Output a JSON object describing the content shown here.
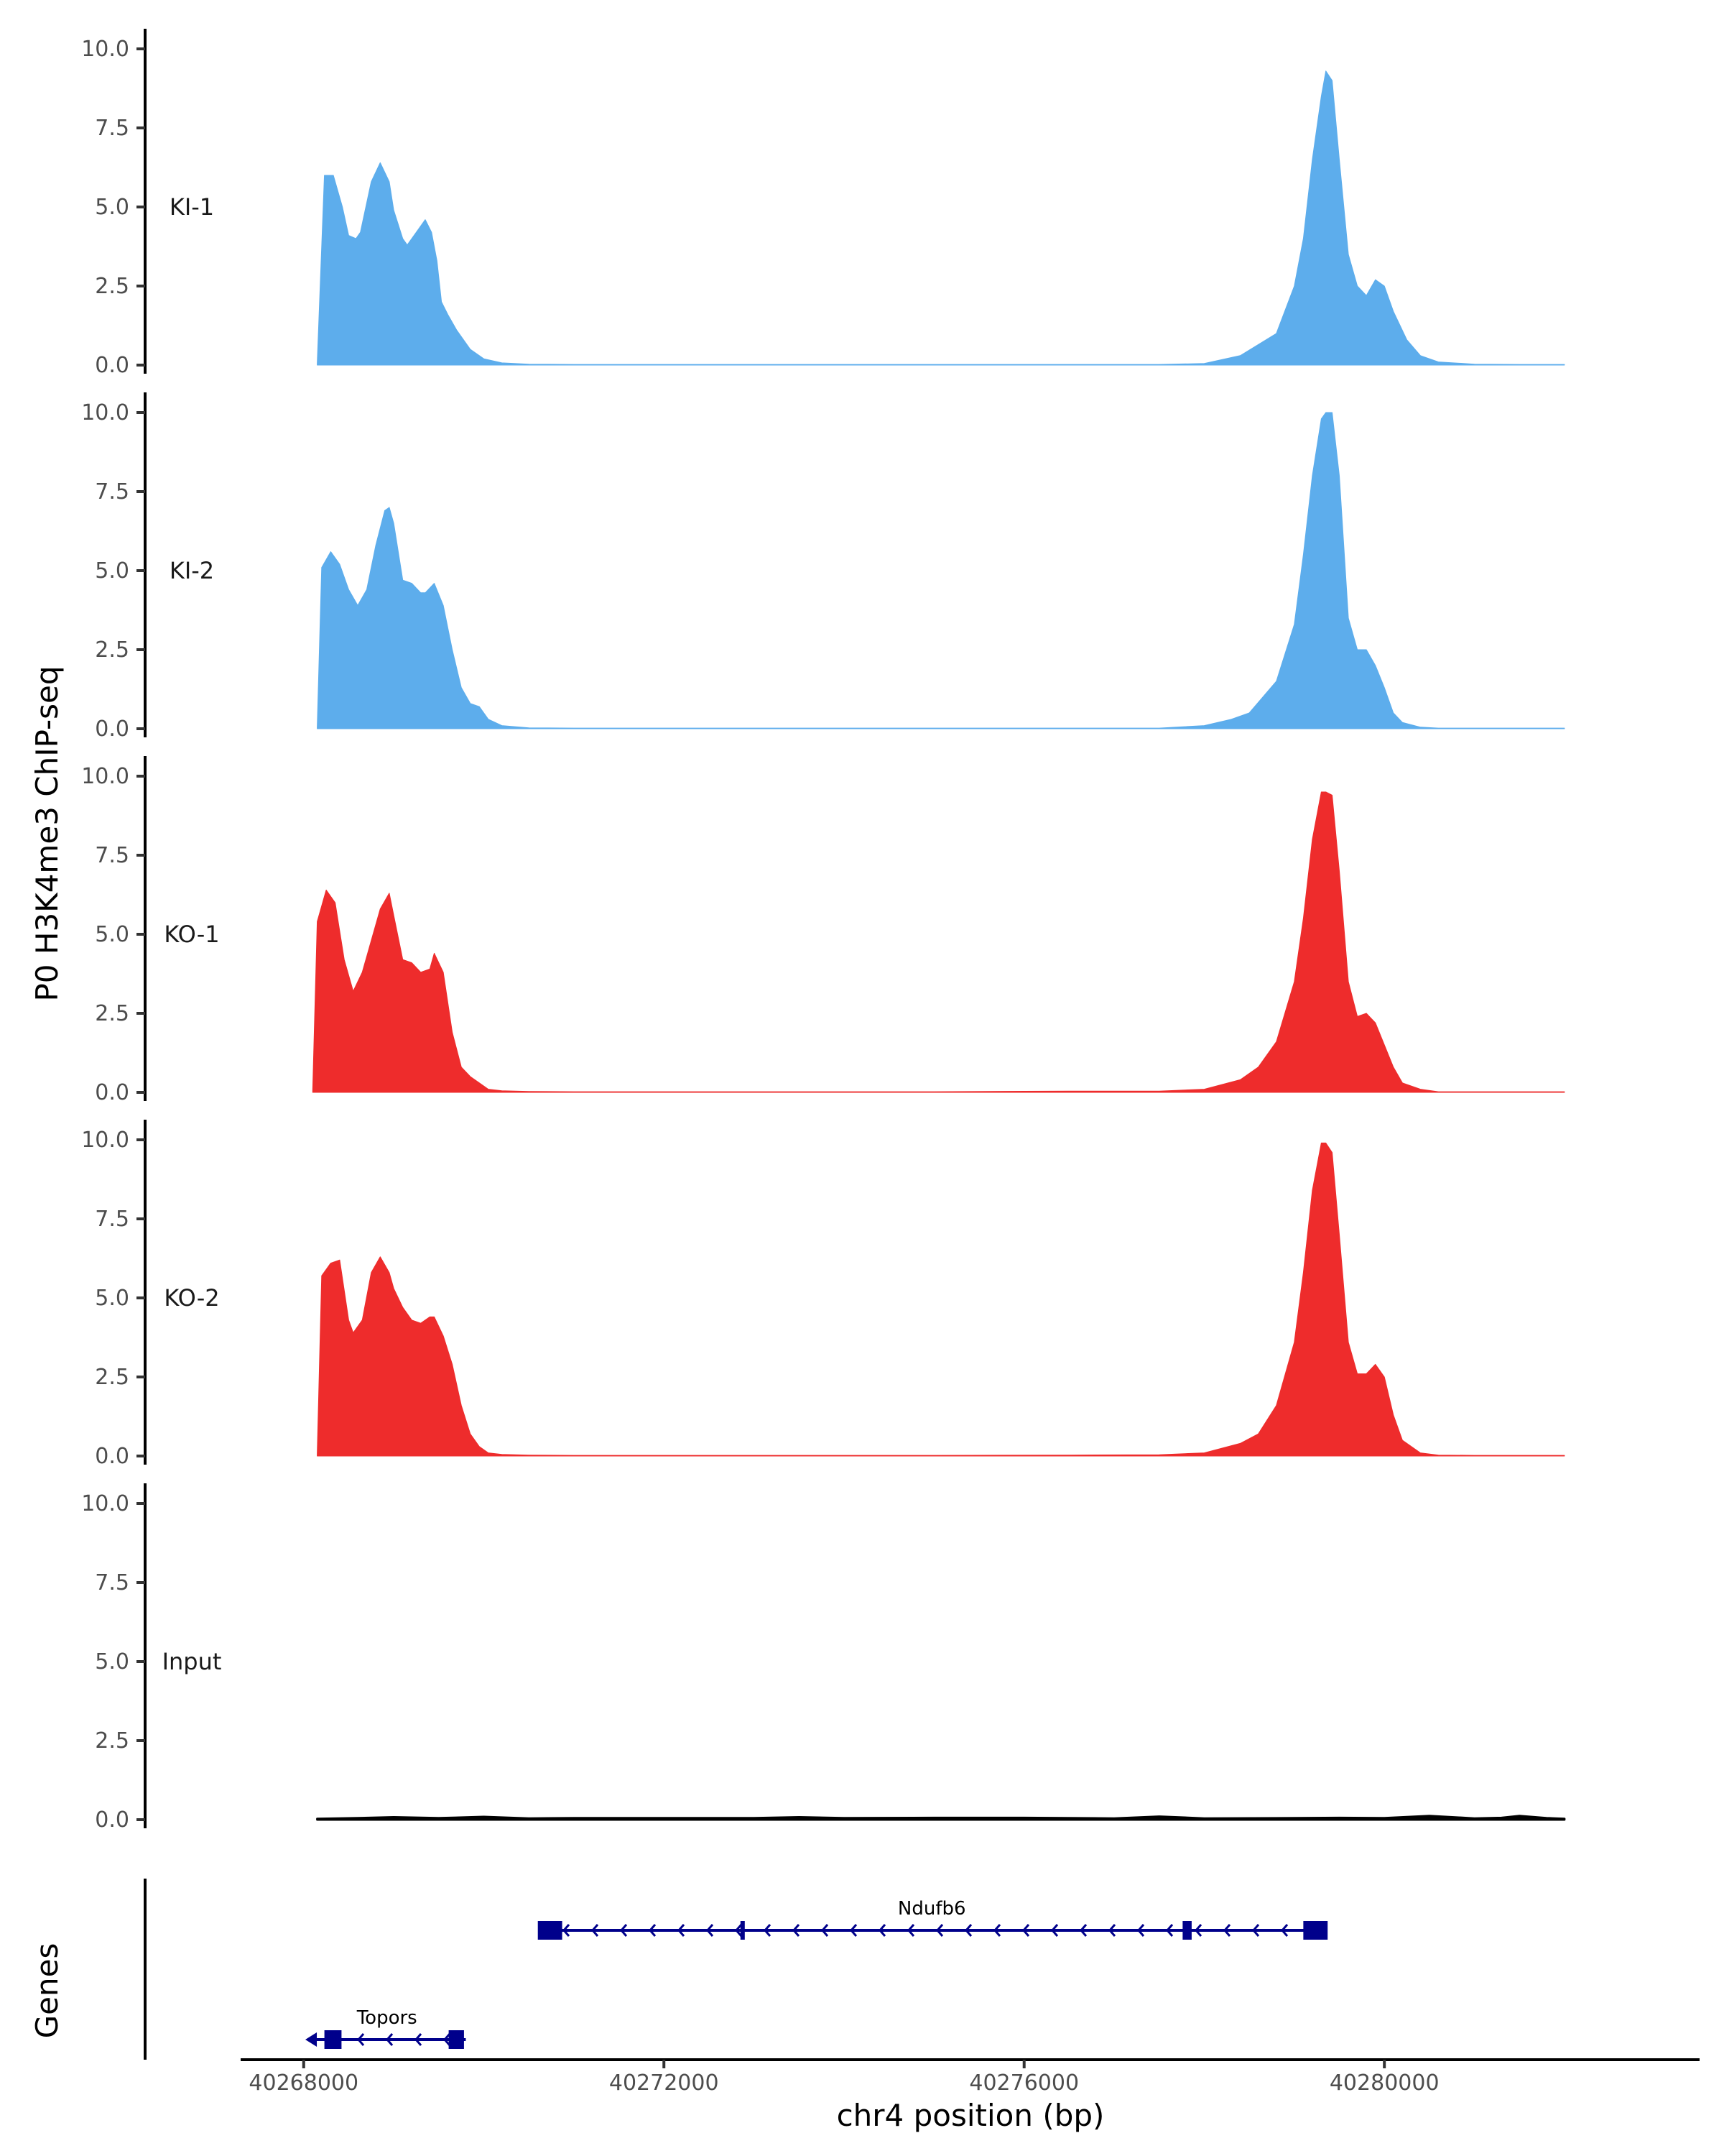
{
  "chart_data": {
    "type": "area",
    "ylabel": "P0 H3K4me3 ChIP-seq",
    "xlabel": "chr4 position (bp)",
    "genes_label": "Genes",
    "ylim": [
      0,
      10.4
    ],
    "xlim": [
      40267300,
      40283500
    ],
    "y_ticks": [
      "0.0",
      "2.5",
      "5.0",
      "7.5",
      "10.0"
    ],
    "y_tick_values": [
      0,
      2.5,
      5.0,
      7.5,
      10.0
    ],
    "x_ticks": [
      "40268000",
      "40272000",
      "40276000",
      "40280000"
    ],
    "x_tick_values": [
      40268000,
      40272000,
      40276000,
      40280000
    ],
    "colors": {
      "KI": "#5DADEC",
      "KO": "#EE2C2C",
      "Input": "#000000",
      "gene": "#00008B"
    },
    "tracks": [
      {
        "name": "KI-1",
        "color": "#5DADEC",
        "x": [
          40268150,
          40268230,
          40268330,
          40268430,
          40268500,
          40268580,
          40268630,
          40268750,
          40268850,
          40268950,
          40269000,
          40269100,
          40269150,
          40269250,
          40269350,
          40269420,
          40269480,
          40269530,
          40269600,
          40269700,
          40269850,
          40270000,
          40270200,
          40270500,
          40271000,
          40272000,
          40273500,
          40275000,
          40276500,
          40277500,
          40278000,
          40278400,
          40278800,
          40279000,
          40279100,
          40279200,
          40279300,
          40279350,
          40279420,
          40279500,
          40279600,
          40279700,
          40279800,
          40279900,
          40280000,
          40280100,
          40280250,
          40280400,
          40280600,
          40281000,
          40281500,
          40282000
        ],
        "values": [
          0.05,
          6.0,
          6.0,
          5.0,
          4.1,
          4.0,
          4.2,
          5.8,
          6.4,
          5.8,
          4.9,
          4.0,
          3.8,
          4.2,
          4.6,
          4.2,
          3.3,
          2.0,
          1.6,
          1.1,
          0.5,
          0.2,
          0.07,
          0.03,
          0.02,
          0.02,
          0.02,
          0.02,
          0.02,
          0.02,
          0.05,
          0.3,
          1.0,
          2.5,
          4.0,
          6.5,
          8.5,
          9.3,
          9.0,
          6.5,
          3.5,
          2.5,
          2.2,
          2.7,
          2.5,
          1.7,
          0.8,
          0.3,
          0.1,
          0.03,
          0.02,
          0.02
        ]
      },
      {
        "name": "KI-2",
        "color": "#5DADEC",
        "x": [
          40268150,
          40268200,
          40268300,
          40268400,
          40268500,
          40268600,
          40268700,
          40268800,
          40268900,
          40268950,
          40269000,
          40269100,
          40269200,
          40269300,
          40269350,
          40269450,
          40269550,
          40269650,
          40269750,
          40269850,
          40269950,
          40270050,
          40270200,
          40270500,
          40271000,
          40272000,
          40273500,
          40275000,
          40276500,
          40277500,
          40278000,
          40278300,
          40278500,
          40278800,
          40279000,
          40279100,
          40279200,
          40279300,
          40279350,
          40279420,
          40279500,
          40279600,
          40279700,
          40279800,
          40279900,
          40280000,
          40280100,
          40280200,
          40280400,
          40280600,
          40281000,
          40282000
        ],
        "values": [
          0.05,
          5.1,
          5.6,
          5.2,
          4.4,
          3.9,
          4.4,
          5.8,
          6.9,
          7.0,
          6.5,
          4.7,
          4.6,
          4.3,
          4.3,
          4.6,
          3.9,
          2.5,
          1.3,
          0.8,
          0.7,
          0.3,
          0.1,
          0.03,
          0.02,
          0.02,
          0.02,
          0.02,
          0.02,
          0.02,
          0.1,
          0.3,
          0.5,
          1.5,
          3.3,
          5.5,
          8.0,
          9.8,
          10.0,
          10.0,
          8.0,
          3.5,
          2.5,
          2.5,
          2.0,
          1.3,
          0.5,
          0.2,
          0.05,
          0.02,
          0.02,
          0.02
        ]
      },
      {
        "name": "KO-1",
        "color": "#EE2C2C",
        "x": [
          40268100,
          40268150,
          40268250,
          40268350,
          40268450,
          40268550,
          40268650,
          40268750,
          40268850,
          40268950,
          40269000,
          40269100,
          40269200,
          40269300,
          40269400,
          40269450,
          40269550,
          40269650,
          40269750,
          40269850,
          40269950,
          40270050,
          40270200,
          40270500,
          40271000,
          40272000,
          40273500,
          40275000,
          40276500,
          40277500,
          40278000,
          40278400,
          40278600,
          40278800,
          40279000,
          40279100,
          40279200,
          40279300,
          40279350,
          40279420,
          40279500,
          40279600,
          40279700,
          40279800,
          40279900,
          40280000,
          40280100,
          40280200,
          40280400,
          40280600,
          40281000,
          40282000
        ],
        "values": [
          0.05,
          5.4,
          6.4,
          6.0,
          4.2,
          3.2,
          3.8,
          4.8,
          5.8,
          6.3,
          5.6,
          4.2,
          4.1,
          3.8,
          3.9,
          4.4,
          3.8,
          1.9,
          0.8,
          0.5,
          0.3,
          0.1,
          0.05,
          0.03,
          0.02,
          0.02,
          0.02,
          0.02,
          0.04,
          0.04,
          0.1,
          0.4,
          0.8,
          1.6,
          3.5,
          5.5,
          8.0,
          9.5,
          9.5,
          9.4,
          7.0,
          3.5,
          2.4,
          2.5,
          2.2,
          1.5,
          0.8,
          0.3,
          0.1,
          0.02,
          0.02,
          0.02
        ]
      },
      {
        "name": "KO-2",
        "color": "#EE2C2C",
        "x": [
          40268150,
          40268200,
          40268300,
          40268400,
          40268500,
          40268550,
          40268650,
          40268750,
          40268850,
          40268950,
          40269000,
          40269100,
          40269200,
          40269300,
          40269400,
          40269450,
          40269550,
          40269650,
          40269750,
          40269850,
          40269950,
          40270050,
          40270200,
          40270500,
          40271000,
          40272000,
          40273500,
          40275000,
          40276500,
          40277500,
          40278000,
          40278400,
          40278600,
          40278800,
          40279000,
          40279100,
          40279200,
          40279300,
          40279350,
          40279420,
          40279500,
          40279600,
          40279700,
          40279800,
          40279900,
          40280000,
          40280100,
          40280200,
          40280400,
          40280600,
          40281000,
          40282000
        ],
        "values": [
          0.05,
          5.7,
          6.1,
          6.2,
          4.3,
          3.9,
          4.3,
          5.8,
          6.3,
          5.8,
          5.3,
          4.7,
          4.3,
          4.2,
          4.4,
          4.4,
          3.8,
          2.9,
          1.6,
          0.7,
          0.3,
          0.1,
          0.05,
          0.03,
          0.02,
          0.02,
          0.02,
          0.02,
          0.03,
          0.04,
          0.1,
          0.4,
          0.7,
          1.6,
          3.6,
          5.8,
          8.4,
          9.9,
          9.9,
          9.6,
          7.0,
          3.6,
          2.6,
          2.6,
          2.9,
          2.5,
          1.3,
          0.5,
          0.1,
          0.03,
          0.02,
          0.02
        ]
      },
      {
        "name": "Input",
        "color": "#000000",
        "x": [
          40268150,
          40268600,
          40269000,
          40269500,
          40270000,
          40270500,
          40271000,
          40272000,
          40273000,
          40273500,
          40274000,
          40275000,
          40276000,
          40277000,
          40277500,
          40278000,
          40279000,
          40279500,
          40280000,
          40280500,
          40281000,
          40281300,
          40281500,
          40281800,
          40282000
        ],
        "values": [
          0.03,
          0.05,
          0.08,
          0.05,
          0.09,
          0.04,
          0.05,
          0.05,
          0.05,
          0.08,
          0.05,
          0.06,
          0.06,
          0.04,
          0.1,
          0.04,
          0.05,
          0.06,
          0.05,
          0.12,
          0.04,
          0.06,
          0.12,
          0.05,
          0.03
        ]
      }
    ],
    "genes": [
      {
        "name": "Ndufb6",
        "start": 40270650,
        "end": 40279300,
        "strand": "-",
        "exons": [
          [
            40270600,
            40270870
          ],
          [
            40272850,
            40272890
          ],
          [
            40277760,
            40277860
          ],
          [
            40279100,
            40279370
          ]
        ]
      },
      {
        "name": "Topors",
        "start": 40268050,
        "end": 40269800,
        "strand": "-",
        "exons": [
          [
            40268230,
            40268420
          ],
          [
            40269610,
            40269780
          ]
        ]
      }
    ]
  }
}
